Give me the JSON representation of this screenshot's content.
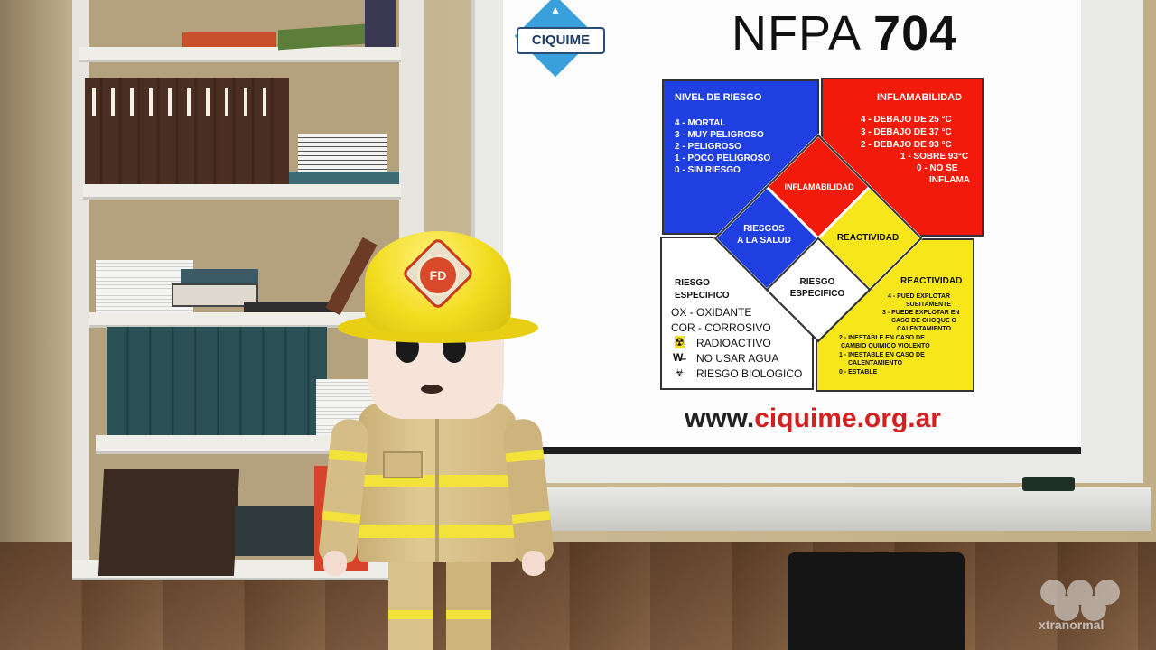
{
  "board": {
    "logo": "CIQUIME",
    "title_prefix": "NFPA ",
    "title_number": "704",
    "url_prefix": "www.",
    "url_domain": "ciquime.org.ar"
  },
  "blue_panel": {
    "title": "NIVEL DE RIESGO",
    "lines": [
      "4 - MORTAL",
      "3 - MUY PELIGROSO",
      "2 - PELIGROSO",
      "1 - POCO PELIGROSO",
      "0 - SIN RIESGO"
    ]
  },
  "red_panel": {
    "title": "INFLAMABILIDAD",
    "lines": [
      "4 - DEBAJO DE 25 °C",
      "3 - DEBAJO DE 37 °C",
      "2 - DEBAJO DE 93 °C",
      "1 - SOBRE 93°C",
      "0 - NO SE",
      "INFLAMA"
    ]
  },
  "white_panel": {
    "title_1": "RIESGO",
    "title_2": "ESPECIFICO",
    "lines": [
      "OX - OXIDANTE",
      "COR - CORROSIVO",
      "RADIOACTIVO",
      "NO USAR AGUA",
      "RIESGO BIOLOGICO"
    ]
  },
  "yellow_panel": {
    "title": "REACTIVIDAD",
    "lines": [
      "4 - PUED EXPLOTAR",
      "SUBITAMENTE",
      "3 - PUEDE EXPLOTAR EN",
      "CASO DE CHOQUE O",
      "CALENTAMIENTO.",
      "2 - INESTABLE EN CASO DE",
      "CAMBIO QUIMICO VIOLENTO",
      "1 - INESTABLE EN CASO DE",
      "CALENTAMIENTO",
      "0 - ESTABLE"
    ]
  },
  "diamond": {
    "red": "INFLAMABILIDAD",
    "blue_1": "RIESGOS",
    "blue_2": "A LA SALUD",
    "yellow": "REACTIVIDAD",
    "white_1": "RIESGO",
    "white_2": "ESPECIFICO"
  },
  "helmet_badge": "FD",
  "watermark": "xtranormal",
  "colors": {
    "blue": "#1f3fe0",
    "red": "#f21a0a",
    "yellow": "#f7e71a",
    "white": "#ffffff",
    "helmet": "#f2dc1e",
    "uniform": "#d9c28a",
    "stripe": "#f2e23a"
  }
}
